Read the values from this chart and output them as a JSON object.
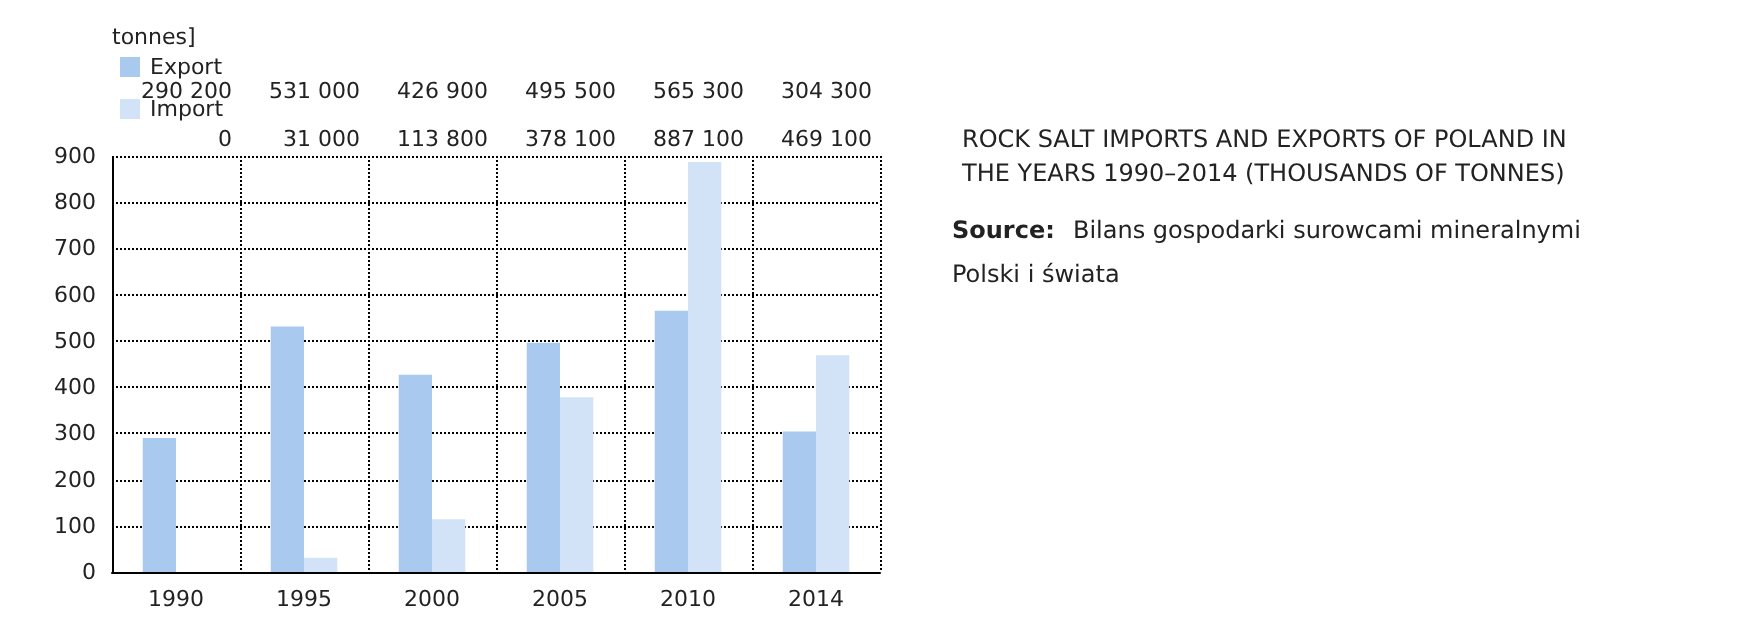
{
  "chart_data": {
    "type": "bar",
    "title": "ROCK SALT IMPORTS AND EXPORTS OF POLAND IN THE YEARS 1990–2014 (THOUSANDS OF TONNES)",
    "ylabel": "tonnes]",
    "annotations": [
      "290 200",
      "531 000",
      "426 900",
      "495 500",
      "565 300",
      "304 300",
      "0",
      "31 000",
      "113 800",
      "378 100",
      "887 100",
      "469 100",
      "Source: Bilans gospodarki surowcami mineralnymi Polski i świata"
    ],
    "categories": [
      "1990",
      "1995",
      "2000",
      "2005",
      "2010",
      "2014"
    ],
    "series": [
      {
        "name": "Export",
        "color": "#a9caee",
        "values": [
          290,
          531,
          427,
          496,
          565,
          304
        ]
      },
      {
        "name": "Import",
        "color": "#d3e3f7",
        "values": [
          0,
          31,
          114,
          378,
          887,
          469
        ]
      }
    ],
    "ylim": [
      0,
      900
    ],
    "yticks": [
      0,
      100,
      200,
      300,
      400,
      500,
      600,
      700,
      800,
      900
    ],
    "grid": true,
    "legend": "top left"
  }
}
